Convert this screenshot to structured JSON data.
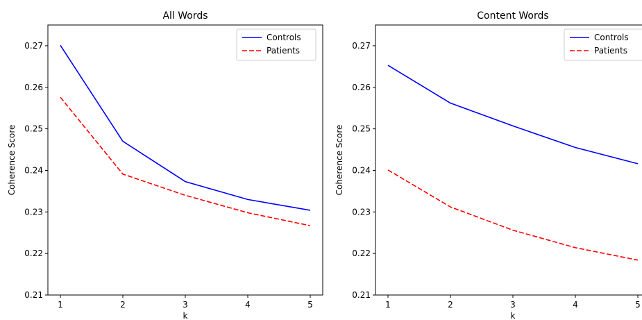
{
  "chart_data": [
    {
      "type": "line",
      "title": "All Words",
      "xlabel": "k",
      "ylabel": "Coherence Score",
      "x": [
        1,
        2,
        3,
        4,
        5
      ],
      "xticks": [
        "1",
        "2",
        "3",
        "4",
        "5"
      ],
      "ylim": [
        0.21,
        0.275
      ],
      "yticks": [
        "0.21",
        "0.22",
        "0.23",
        "0.24",
        "0.25",
        "0.26",
        "0.27"
      ],
      "grid": false,
      "legend_position": "top-right",
      "series": [
        {
          "name": "Controls",
          "color": "#0000ff",
          "dash": "solid",
          "values": [
            0.2701,
            0.247,
            0.2373,
            0.233,
            0.2304
          ]
        },
        {
          "name": "Patients",
          "color": "#ff0000",
          "dash": "dashed",
          "values": [
            0.2576,
            0.2391,
            0.234,
            0.2298,
            0.2267
          ]
        }
      ]
    },
    {
      "type": "line",
      "title": "Content Words",
      "xlabel": "k",
      "ylabel": "Coherence Score",
      "x": [
        1,
        2,
        3,
        4,
        5
      ],
      "xticks": [
        "1",
        "2",
        "3",
        "4",
        "5"
      ],
      "ylim": [
        0.21,
        0.275
      ],
      "yticks": [
        "0.21",
        "0.22",
        "0.23",
        "0.24",
        "0.25",
        "0.26",
        "0.27"
      ],
      "grid": false,
      "legend_position": "top-right",
      "series": [
        {
          "name": "Controls",
          "color": "#0000ff",
          "dash": "solid",
          "values": [
            0.2653,
            0.2562,
            0.2507,
            0.2455,
            0.2416
          ]
        },
        {
          "name": "Patients",
          "color": "#ff0000",
          "dash": "dashed",
          "values": [
            0.2401,
            0.2312,
            0.2256,
            0.2214,
            0.2184
          ]
        }
      ]
    }
  ]
}
